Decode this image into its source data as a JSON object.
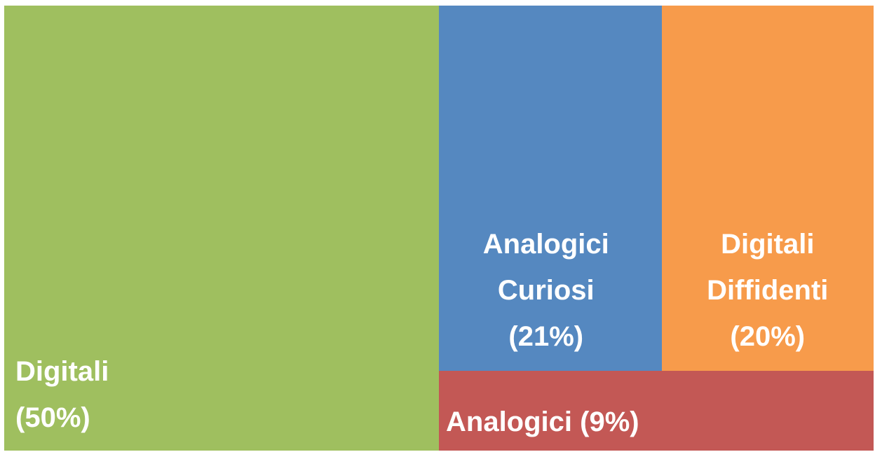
{
  "chart_data": {
    "type": "treemap",
    "categories": [
      "Digitali",
      "Analogici Curiosi",
      "Digitali Diffidenti",
      "Analogici"
    ],
    "values": [
      50,
      21,
      20,
      9
    ],
    "value_labels": [
      "(50%)",
      "(21%)",
      "(20%)",
      "(9%)"
    ],
    "colors": [
      "#9fbf5f",
      "#5588c0",
      "#f79b4b",
      "#c35855"
    ]
  }
}
